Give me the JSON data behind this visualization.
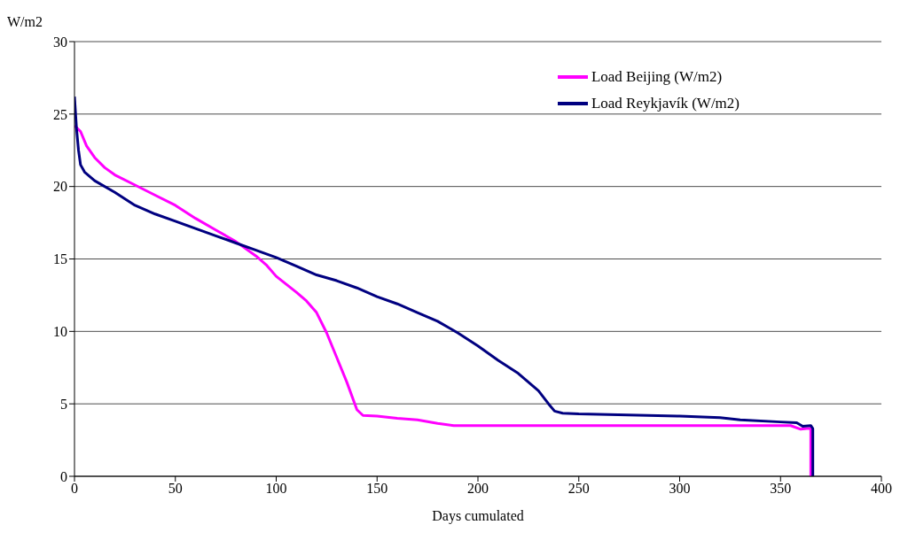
{
  "chart_data": {
    "type": "line",
    "xlabel": "Days cumulated",
    "ylabel": "W/m2",
    "xlim": [
      0,
      400
    ],
    "xticks": [
      0,
      50,
      100,
      150,
      200,
      250,
      300,
      350,
      400
    ],
    "ylim": [
      0,
      30
    ],
    "yticks": [
      0,
      5,
      10,
      15,
      20,
      25,
      30
    ],
    "grid": "y",
    "legend": "top right",
    "marker": "none",
    "line_style": "solid",
    "series": [
      {
        "name": "Load Beijing (W/m2)",
        "color": "#ff00ff",
        "x": [
          0,
          3,
          6,
          10,
          15,
          20,
          30,
          40,
          50,
          60,
          70,
          80,
          90,
          95,
          100,
          110,
          115,
          120,
          125,
          130,
          135,
          140,
          143,
          150,
          160,
          170,
          180,
          188,
          200,
          300,
          355,
          360,
          363,
          365,
          365
        ],
        "values": [
          24.2,
          23.8,
          22.8,
          22,
          21.3,
          20.8,
          20.1,
          19.4,
          18.7,
          17.8,
          17,
          16.2,
          15.2,
          14.6,
          13.8,
          12.7,
          12.1,
          11.3,
          9.9,
          8.2,
          6.5,
          4.6,
          4.2,
          4.15,
          4,
          3.9,
          3.65,
          3.5,
          3.5,
          3.5,
          3.5,
          3.25,
          3.3,
          3.3,
          0
        ]
      },
      {
        "name": "Load Reykjavík (W/m2)",
        "color": "#000080",
        "x": [
          0,
          1,
          2,
          3,
          5,
          10,
          20,
          30,
          40,
          50,
          60,
          70,
          80,
          90,
          100,
          110,
          120,
          130,
          140,
          150,
          160,
          170,
          180,
          190,
          200,
          210,
          220,
          230,
          235,
          238,
          242,
          250,
          300,
          320,
          330,
          350,
          358,
          361,
          365,
          366,
          366
        ],
        "values": [
          26.2,
          24,
          22.5,
          21.5,
          21,
          20.4,
          19.6,
          18.7,
          18.1,
          17.6,
          17.1,
          16.6,
          16.1,
          15.6,
          15.1,
          14.5,
          13.9,
          13.5,
          13,
          12.4,
          11.9,
          11.3,
          10.7,
          9.9,
          9,
          8,
          7.1,
          5.9,
          5,
          4.5,
          4.35,
          4.3,
          4.15,
          4.05,
          3.9,
          3.75,
          3.7,
          3.45,
          3.5,
          3.3,
          0
        ]
      }
    ]
  }
}
